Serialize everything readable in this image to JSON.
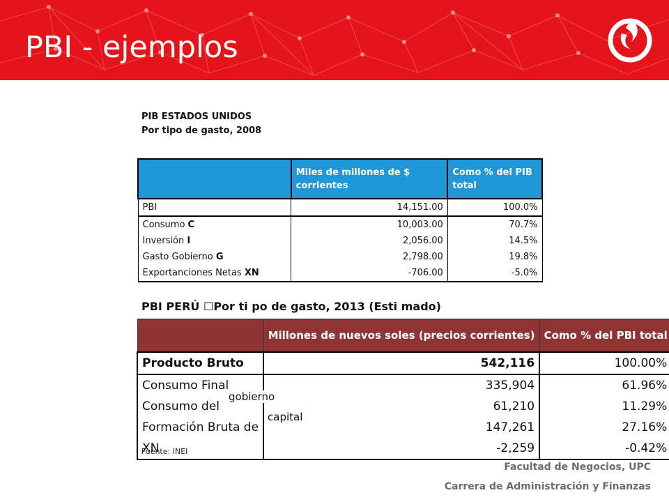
{
  "slide": {
    "title": "PBI - ejemplos"
  },
  "colors": {
    "header_red": "#e5141b",
    "us_header_blue": "#1f97d8",
    "peru_header_maroon": "#8e3434",
    "footer_gray": "#6b6b6b"
  },
  "logo": {
    "icon": "upc-flame-logo-icon"
  },
  "us": {
    "caption_line1": "PIB ESTADOS UNIDOS",
    "caption_line2": "Por tipo de gasto, 2008",
    "headers": [
      "",
      "Miles de millones de $ corrientes",
      "Como % del PIB total"
    ],
    "rows": [
      {
        "label": "PBI",
        "label_bold": "",
        "value": "14,151.00",
        "pct": "100.0%"
      },
      {
        "label": "Consumo ",
        "label_bold": "C",
        "value": "10,003.00",
        "pct": "70.7%"
      },
      {
        "label": "Inversión ",
        "label_bold": "I",
        "value": "2,056.00",
        "pct": "14.5%"
      },
      {
        "label": "Gasto Gobierno ",
        "label_bold": "G",
        "value": "2,798.00",
        "pct": "19.8%"
      },
      {
        "label": "Exportanciones Netas ",
        "label_bold": "XN",
        "value": "-706.00",
        "pct": "-5.0%"
      }
    ]
  },
  "peru": {
    "caption": "PBI PERÚ ☐Por ti po de gasto, 2013 (Esti mado)",
    "headers": [
      "",
      "Millones de nuevos soles (precios corrientes)",
      "Como % del PBI total"
    ],
    "rows": [
      {
        "label": "Producto Bruto",
        "value": "542,116",
        "pct": "100.00%"
      },
      {
        "label": "Consumo Final",
        "value": "335,904",
        "pct": "61.96%"
      },
      {
        "label": "Consumo del",
        "value": "61,210",
        "pct": "11.29%"
      },
      {
        "label": "Formación Bruta de",
        "value": "147,261",
        "pct": "27.16%"
      },
      {
        "label": "XN",
        "value": "-2,259",
        "pct": "-0.42%"
      }
    ],
    "overlay_gobierno": "gobierno",
    "overlay_capital": "capital",
    "source": "Fuente: INEI"
  },
  "footer": {
    "line1": "Facultad de Negocios, UPC",
    "line2": "Carrera de Administración y Finanzas"
  }
}
